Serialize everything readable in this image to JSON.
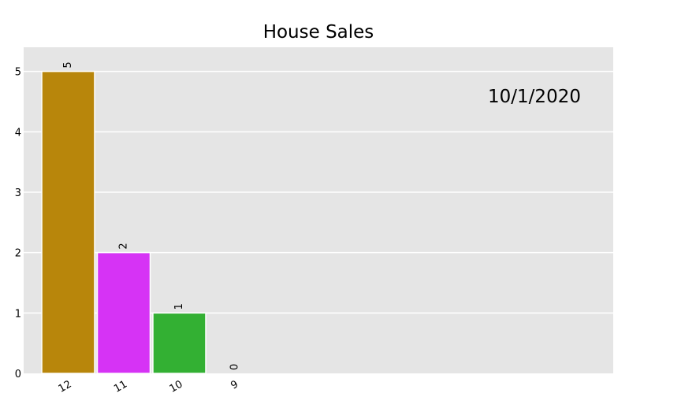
{
  "chart_data": {
    "type": "bar",
    "title": "House Sales",
    "annotation": "10/1/2020",
    "categories": [
      "12",
      "11",
      "10",
      "9"
    ],
    "values": [
      5,
      2,
      1,
      0
    ],
    "value_labels": [
      "5",
      "2",
      "1",
      "0"
    ],
    "bar_colors": [
      "#b8860b",
      "#d633f5",
      "#33b033",
      "#1f77b4"
    ],
    "ylim": [
      0,
      5.4
    ],
    "yticks": [
      "0",
      "1",
      "2",
      "3",
      "4",
      "5"
    ],
    "grid": true,
    "background": "#e5e5e5",
    "xlabel": "",
    "ylabel": ""
  }
}
